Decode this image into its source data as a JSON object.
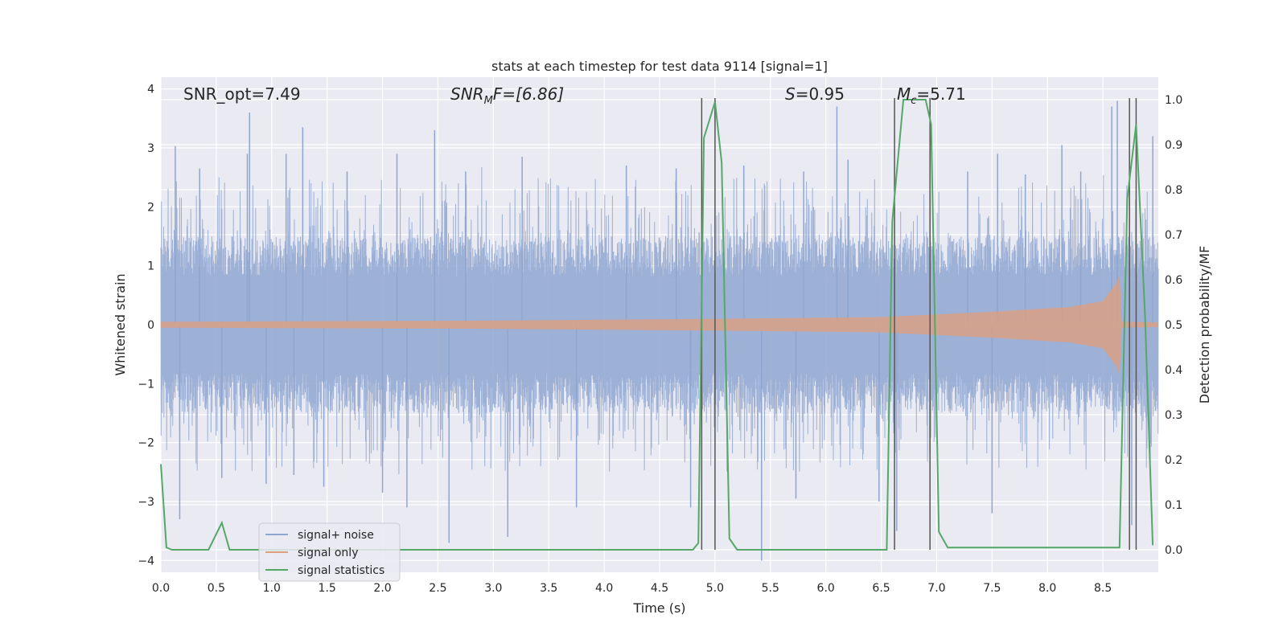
{
  "chart_data": {
    "type": "line",
    "title": "stats at each timestep for test data 9114 [signal=1]",
    "xlabel": "Time (s)",
    "ylabel": "Whitened strain",
    "y2label": "Detection probability/MF",
    "xlim": [
      0.0,
      9.0
    ],
    "ylim": [
      -4.2,
      4.2
    ],
    "y2lim": [
      -0.05,
      1.05
    ],
    "xticks": [
      0.0,
      0.5,
      1.0,
      1.5,
      2.0,
      2.5,
      3.0,
      3.5,
      4.0,
      4.5,
      5.0,
      5.5,
      6.0,
      6.5,
      7.0,
      7.5,
      8.0,
      8.5
    ],
    "xtick_labels": [
      "0.0",
      "0.5",
      "1.0",
      "1.5",
      "2.0",
      "2.5",
      "3.0",
      "3.5",
      "4.0",
      "4.5",
      "5.0",
      "5.5",
      "6.0",
      "6.5",
      "7.0",
      "7.5",
      "8.0",
      "8.5"
    ],
    "yticks": [
      4,
      3,
      2,
      1,
      0,
      -1,
      -2,
      -3,
      -4
    ],
    "ytick_labels": [
      "4",
      "3",
      "2",
      "1",
      "0",
      "−1",
      "−2",
      "−3",
      "−4"
    ],
    "y2ticks": [
      1.0,
      0.9,
      0.8,
      0.7,
      0.6,
      0.5,
      0.4,
      0.3,
      0.2,
      0.1,
      0.0
    ],
    "y2tick_labels": [
      "1.0",
      "0.9",
      "0.8",
      "0.7",
      "0.6",
      "0.5",
      "0.4",
      "0.3",
      "0.2",
      "0.1",
      "0.0"
    ],
    "grid": true,
    "legend_position": "lower-left",
    "annotations": {
      "snr_opt": "SNR_opt=7.49",
      "snr_mf_base": "SNR",
      "snr_mf_sub": "M",
      "snr_mf_rest": "F=[6.86]",
      "s_italic": "S",
      "s_rest": "=0.95",
      "mc_base": "M",
      "mc_sub": "c",
      "mc_rest": "=5.71"
    },
    "series": [
      {
        "name": "signal+ noise",
        "color": "#8fa6d0",
        "description": "dense whitened noise, core amplitude about 1.5 with spikes",
        "core_amplitude": 1.5,
        "spikes": [
          {
            "x": 0.13,
            "y": 3.03
          },
          {
            "x": 0.17,
            "y": -3.3
          },
          {
            "x": 0.35,
            "y": 2.65
          },
          {
            "x": 0.55,
            "y": -2.6
          },
          {
            "x": 0.78,
            "y": 2.9
          },
          {
            "x": 0.8,
            "y": 3.6
          },
          {
            "x": 0.95,
            "y": -2.7
          },
          {
            "x": 1.13,
            "y": 2.9
          },
          {
            "x": 1.28,
            "y": 3.35
          },
          {
            "x": 1.47,
            "y": -2.75
          },
          {
            "x": 1.68,
            "y": 2.6
          },
          {
            "x": 2.0,
            "y": -2.85
          },
          {
            "x": 2.13,
            "y": 2.9
          },
          {
            "x": 2.22,
            "y": -3.1
          },
          {
            "x": 2.47,
            "y": 3.3
          },
          {
            "x": 2.6,
            "y": -3.7
          },
          {
            "x": 2.75,
            "y": 2.6
          },
          {
            "x": 3.13,
            "y": -3.6
          },
          {
            "x": 3.26,
            "y": 2.85
          },
          {
            "x": 3.75,
            "y": -3.1
          },
          {
            "x": 4.2,
            "y": 2.7
          },
          {
            "x": 4.65,
            "y": 2.65
          },
          {
            "x": 4.78,
            "y": -3.1
          },
          {
            "x": 5.26,
            "y": 2.7
          },
          {
            "x": 5.42,
            "y": -4.0
          },
          {
            "x": 5.8,
            "y": 2.6
          },
          {
            "x": 6.1,
            "y": 3.7
          },
          {
            "x": 6.2,
            "y": 2.8
          },
          {
            "x": 6.48,
            "y": -3.0
          },
          {
            "x": 6.64,
            "y": -3.5
          },
          {
            "x": 7.28,
            "y": 2.6
          },
          {
            "x": 7.5,
            "y": -3.2
          },
          {
            "x": 7.55,
            "y": 2.9
          },
          {
            "x": 7.8,
            "y": 2.55
          },
          {
            "x": 8.13,
            "y": 3.05
          },
          {
            "x": 8.3,
            "y": 2.6
          },
          {
            "x": 8.58,
            "y": 3.7
          },
          {
            "x": 8.63,
            "y": 3.8
          },
          {
            "x": 8.76,
            "y": -3.4
          },
          {
            "x": 8.95,
            "y": 3.2
          },
          {
            "x": 5.73,
            "y": -2.95
          },
          {
            "x": 1.2,
            "y": -2.55
          }
        ]
      },
      {
        "name": "signal only",
        "color": "#dd9f80",
        "description": "chirp envelope growing until merger",
        "envelope": [
          {
            "x": 0.0,
            "a": 0.05
          },
          {
            "x": 3.0,
            "a": 0.07
          },
          {
            "x": 5.0,
            "a": 0.1
          },
          {
            "x": 6.5,
            "a": 0.13
          },
          {
            "x": 7.5,
            "a": 0.22
          },
          {
            "x": 8.2,
            "a": 0.3
          },
          {
            "x": 8.5,
            "a": 0.4
          },
          {
            "x": 8.62,
            "a": 0.7
          },
          {
            "x": 8.65,
            "a": 0.85
          },
          {
            "x": 8.67,
            "a": 0.05
          },
          {
            "x": 9.0,
            "a": 0.04
          }
        ]
      },
      {
        "name": "signal statistics",
        "color": "#55a868",
        "x": [
          0.0,
          0.05,
          0.1,
          0.43,
          0.55,
          0.62,
          4.8,
          4.85,
          4.9,
          5.0,
          5.06,
          5.13,
          5.2,
          6.55,
          6.6,
          6.7,
          6.9,
          6.95,
          7.02,
          7.1,
          8.65,
          8.72,
          8.8,
          8.88,
          8.95
        ],
        "y": [
          0.19,
          0.005,
          0.0,
          0.0,
          0.06,
          0.0,
          0.0,
          0.015,
          0.915,
          0.995,
          0.86,
          0.025,
          0.0,
          0.0,
          0.73,
          1.0,
          1.0,
          0.945,
          0.04,
          0.005,
          0.005,
          0.78,
          0.945,
          0.52,
          0.01
        ]
      }
    ],
    "vertical_lines": [
      4.88,
      5.0,
      6.62,
      6.94,
      8.74,
      8.8
    ],
    "vertical_line_color": "#555555"
  }
}
